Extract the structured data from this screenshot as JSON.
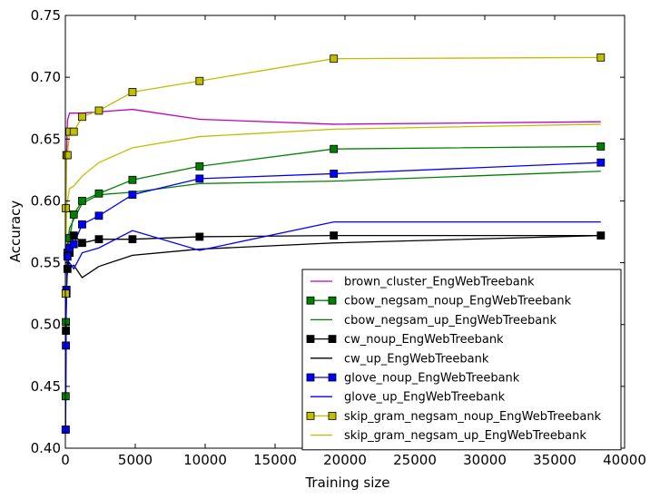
{
  "chart_data": {
    "type": "line",
    "title": "",
    "xlabel": "Training size",
    "ylabel": "Accuracy",
    "xlim": [
      0,
      40000
    ],
    "ylim": [
      0.4,
      0.75
    ],
    "xticks": [
      0,
      5000,
      10000,
      15000,
      20000,
      25000,
      30000,
      35000,
      40000
    ],
    "xtick_labels": [
      "0",
      "5000",
      "10000",
      "15000",
      "20000",
      "25000",
      "30000",
      "35000",
      "40000"
    ],
    "yticks": [
      0.4,
      0.45,
      0.5,
      0.55,
      0.6,
      0.65,
      0.7,
      0.75
    ],
    "ytick_labels": [
      "0.40",
      "0.45",
      "0.50",
      "0.55",
      "0.60",
      "0.65",
      "0.70",
      "0.75"
    ],
    "grid": false,
    "legend_position": "lower-right",
    "x": [
      20,
      40,
      75,
      150,
      300,
      600,
      1200,
      2400,
      4800,
      9600,
      19200,
      38300
    ],
    "series": [
      {
        "name": "brown_cluster_EngWebTreebank",
        "color": "#bf00bf",
        "marker": "none",
        "values": [
          0.54,
          0.58,
          0.63,
          0.665,
          0.671,
          0.671,
          0.671,
          0.672,
          0.674,
          0.666,
          0.662,
          0.664
        ]
      },
      {
        "name": "cbow_negsam_noup_EngWebTreebank",
        "color": "#008000",
        "marker": "square",
        "values": [
          0.442,
          0.502,
          0.528,
          0.558,
          0.57,
          0.589,
          0.6,
          0.606,
          0.617,
          0.628,
          0.642,
          0.644
        ]
      },
      {
        "name": "cbow_negsam_up_EngWebTreebank",
        "color": "#008000",
        "marker": "none",
        "values": [
          0.45,
          0.505,
          0.54,
          0.565,
          0.578,
          0.585,
          0.598,
          0.605,
          0.607,
          0.614,
          0.616,
          0.624
        ]
      },
      {
        "name": "cw_noup_EngWebTreebank",
        "color": "#000000",
        "marker": "square",
        "values": [
          0.415,
          0.495,
          0.525,
          0.545,
          0.558,
          0.572,
          0.566,
          0.569,
          0.569,
          0.571,
          0.572,
          0.572
        ]
      },
      {
        "name": "cw_up_EngWebTreebank",
        "color": "#000000",
        "marker": "none",
        "values": [
          0.42,
          0.5,
          0.53,
          0.545,
          0.546,
          0.548,
          0.538,
          0.547,
          0.556,
          0.561,
          0.566,
          0.572
        ]
      },
      {
        "name": "glove_noup_EngWebTreebank",
        "color": "#0000ff",
        "marker": "square",
        "values": [
          0.415,
          0.483,
          0.528,
          0.555,
          0.562,
          0.565,
          0.581,
          0.588,
          0.605,
          0.618,
          0.622,
          0.631
        ]
      },
      {
        "name": "glove_up_EngWebTreebank",
        "color": "#0000ff",
        "marker": "none",
        "values": [
          0.42,
          0.49,
          0.53,
          0.545,
          0.55,
          0.545,
          0.558,
          0.562,
          0.576,
          0.56,
          0.583,
          0.583
        ]
      },
      {
        "name": "skip_gram_negsam_noup_EngWebTreebank",
        "color": "#bfbf00",
        "marker": "square",
        "values": [
          0.525,
          0.594,
          0.637,
          0.637,
          0.656,
          0.656,
          0.668,
          0.673,
          0.688,
          0.697,
          0.715,
          0.716
        ]
      },
      {
        "name": "skip_gram_negsam_up_EngWebTreebank",
        "color": "#bfbf00",
        "marker": "none",
        "values": [
          0.53,
          0.56,
          0.585,
          0.6,
          0.61,
          0.612,
          0.62,
          0.631,
          0.643,
          0.652,
          0.658,
          0.662
        ]
      }
    ]
  }
}
